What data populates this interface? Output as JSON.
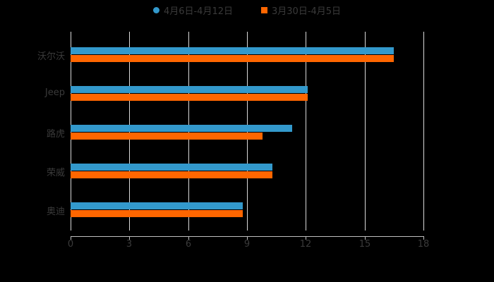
{
  "chart_data": {
    "type": "bar",
    "orientation": "horizontal",
    "title": "",
    "xlabel": "",
    "ylabel": "",
    "categories": [
      "沃尔沃",
      "Jeep",
      "路虎",
      "荣威",
      "奥迪"
    ],
    "series": [
      {
        "name": "4月6日-4月12日",
        "color": "#3399cc",
        "values": [
          16.5,
          12.1,
          11.3,
          10.3,
          8.8
        ]
      },
      {
        "name": "3月30日-4月5日",
        "color": "#ff6600",
        "values": [
          16.5,
          12.1,
          9.8,
          10.3,
          8.8
        ]
      }
    ],
    "xlim": [
      0,
      18
    ],
    "xticks": [
      "0",
      "3",
      "6",
      "9",
      "12",
      "15",
      "18"
    ],
    "grid": true,
    "legend_position": "top"
  },
  "legend": {
    "items": [
      {
        "label": "4月6日-4月12日",
        "color": "#3399cc",
        "marker": "circle"
      },
      {
        "label": "3月30日-4月5日",
        "color": "#ff6600",
        "marker": "square"
      }
    ]
  }
}
